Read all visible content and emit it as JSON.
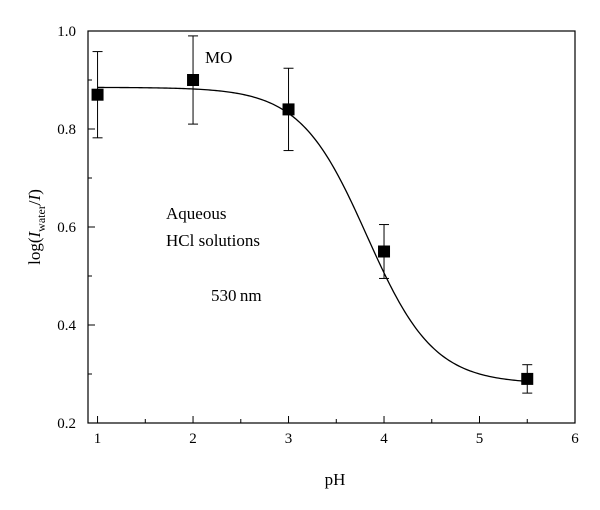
{
  "chart_data": {
    "type": "scatter",
    "xlabel": "pH",
    "ylabel": {
      "prefix": "log(",
      "var1": "I",
      "sub": "water",
      "mid": "/",
      "var2": "I",
      "suffix": ")"
    },
    "xlim": [
      0.9,
      6
    ],
    "ylim": [
      0.2,
      1.0
    ],
    "x_ticks": [
      1,
      2,
      3,
      4,
      5,
      6
    ],
    "y_ticks": [
      0.2,
      0.4,
      0.6,
      0.8,
      1.0
    ],
    "y_tick_labels": [
      "0.2",
      "0.4",
      "0.6",
      "0.8",
      "1.0"
    ],
    "grid": false,
    "points": [
      {
        "x": 1,
        "y": 0.87,
        "err": 0.088
      },
      {
        "x": 2,
        "y": 0.9,
        "err": 0.09
      },
      {
        "x": 3,
        "y": 0.84,
        "err": 0.084
      },
      {
        "x": 4,
        "y": 0.55,
        "err": 0.055
      },
      {
        "x": 5.5,
        "y": 0.29,
        "err": 0.029
      }
    ],
    "fit_curve": {
      "type": "sigmoid",
      "top": 0.885,
      "bottom": 0.28,
      "x50": 3.82,
      "width": 0.35
    },
    "annotations": {
      "series_label": "MO",
      "line1": "Aqueous",
      "line2": "HCl solutions",
      "line3": "530 nm"
    }
  }
}
